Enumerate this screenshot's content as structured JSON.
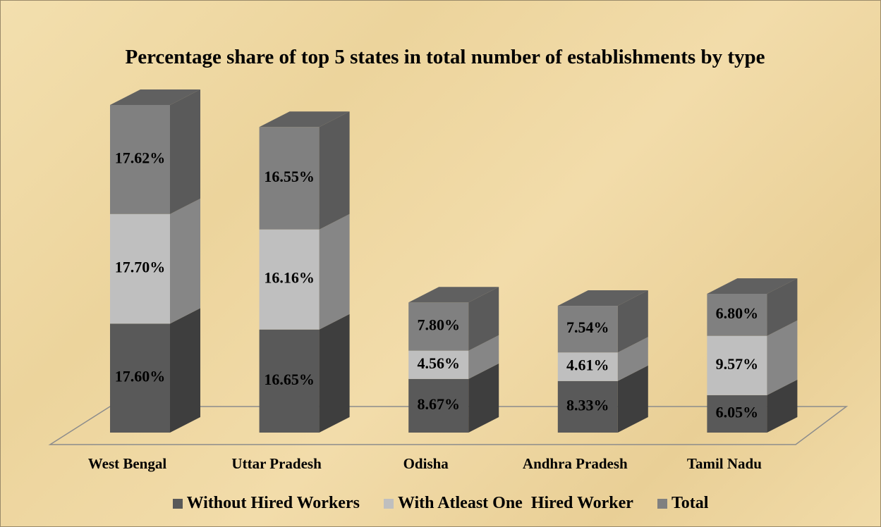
{
  "chart_data": {
    "type": "bar3d_stacked",
    "title": "Percentage share of top 5 states in total number of establishments by type",
    "categories": [
      "West Bengal",
      "Uttar Pradesh",
      "Odisha",
      "Andhra Pradesh",
      "Tamil Nadu"
    ],
    "series": [
      {
        "name": "Without Hired Workers",
        "color": "#595959",
        "values": [
          17.6,
          16.65,
          8.67,
          8.33,
          6.05
        ],
        "value_labels": [
          "17.60%",
          "16.65%",
          "8.67%",
          "8.33%",
          "6.05%"
        ]
      },
      {
        "name": "With Atleast One  Hired Worker",
        "color": "#bfbfbf",
        "values": [
          17.7,
          16.16,
          4.56,
          4.61,
          9.57
        ],
        "value_labels": [
          "17.70%",
          "16.16%",
          "4.56%",
          "4.61%",
          "9.57%"
        ]
      },
      {
        "name": "Total",
        "color": "#808080",
        "values": [
          17.62,
          16.55,
          7.8,
          7.54,
          6.8
        ],
        "value_labels": [
          "17.62%",
          "16.55%",
          "7.80%",
          "7.54%",
          "6.80%"
        ]
      }
    ],
    "legend": "bottom"
  }
}
